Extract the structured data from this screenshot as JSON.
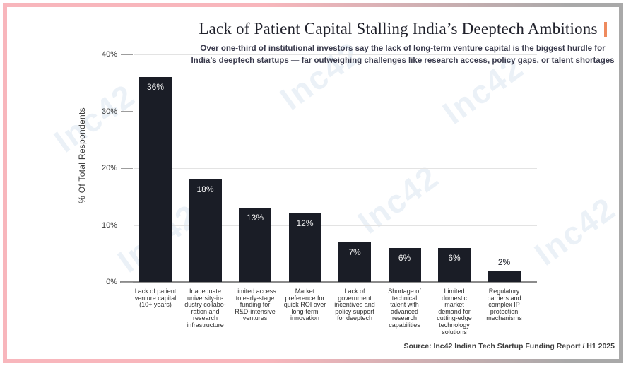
{
  "chart_data": {
    "type": "bar",
    "title": "Lack of Patient Capital Stalling India’s Deeptech Ambitions",
    "subtitle_line1": "Over one-third of institutional investors say the lack of long-term venture capital is the biggest hurdle for",
    "subtitle_line2": "India’s deeptech startups — far outweighing challenges like research access, policy gaps, or talent shortages",
    "ylabel": "% Of Total Respondents",
    "xlabel": "",
    "ylim": [
      0,
      40
    ],
    "yticks": [
      40,
      30,
      20,
      10,
      0
    ],
    "ytick_labels": [
      "40%",
      "30%",
      "20%",
      "10%",
      "0%"
    ],
    "grid": true,
    "legend": false,
    "value_suffix": "%",
    "categories": [
      "Lack of patient\nventure capital\n(10+ years)",
      "Inadequate\nuniversity-in-\ndustry collabo-\nration and\nresearch\ninfrastructure",
      "Limited access\nto early-stage\nfunding for\nR&D-intensive\nventures",
      "Market\npreference for\nquick ROI over\nlong-term\ninnovation",
      "Lack of\ngovernment\nincentives and\npolicy support\nfor deeptech",
      "Shortage of\ntechnical\ntalent with\nadvanced\nresearch\ncapabilities",
      "Limited\ndomestic\nmarket\ndemand for\ncutting-edge\ntechnology\nsolutions",
      "Regulatory\nbarriers and\ncomplex IP\nprotection\nmechanisms"
    ],
    "values": [
      36,
      18,
      13,
      12,
      7,
      6,
      6,
      2
    ],
    "value_labels": [
      "36%",
      "18%",
      "13%",
      "12%",
      "7%",
      "6%",
      "6%",
      "2%"
    ],
    "bar_color": "#1a1d26",
    "source": "Source: Inc42 Indian Tech Startup Funding Report / H1 2025"
  },
  "watermark": {
    "text": "Inc42"
  },
  "colors": {
    "frame_pink": "#f8b6bc",
    "frame_gray": "#a9a9a9",
    "accent_orange": "#ee8a5e",
    "gridline": "#e3e3e3",
    "axis": "#8b8b8b"
  }
}
